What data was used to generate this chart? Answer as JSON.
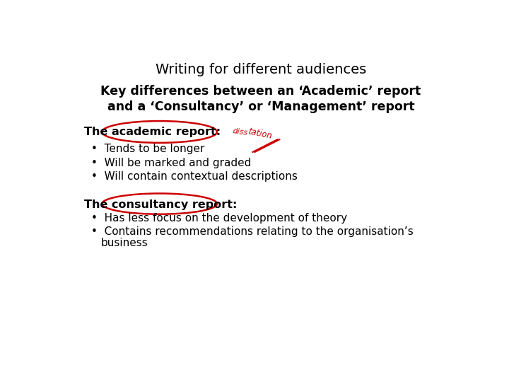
{
  "title": "Writing for different audiences",
  "subtitle_line1": "Key differences between an ‘Academic’ report",
  "subtitle_line2": "and a ‘Consultancy’ or ‘Management’ report",
  "section1_header": "The academic report:",
  "section1_bullets": [
    "Tends to be longer",
    "Will be marked and graded",
    "Will contain contextual descriptions"
  ],
  "section2_header": "The consultancy report:",
  "section2_bullets": [
    "Has less focus on the development of theory",
    "Contains recommendations relating to the organisation’s business"
  ],
  "bg_color": "#ffffff",
  "title_color": "#000000",
  "subtitle_color": "#000000",
  "body_color": "#000000",
  "annotation_color": "#cc0000",
  "title_fontsize": 14,
  "subtitle_fontsize": 12.5,
  "header_fontsize": 11.5,
  "bullet_fontsize": 11
}
